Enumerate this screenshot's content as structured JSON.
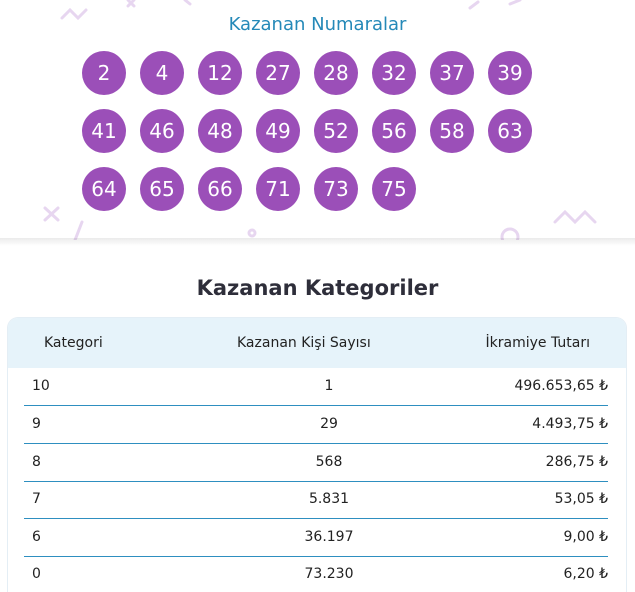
{
  "numbers": {
    "title": "Kazanan Numaralar",
    "balls": [
      "2",
      "4",
      "12",
      "27",
      "28",
      "32",
      "37",
      "39",
      "41",
      "46",
      "48",
      "49",
      "52",
      "56",
      "58",
      "63",
      "64",
      "65",
      "66",
      "71",
      "73",
      "75"
    ],
    "ball_color": "#9b4fb8",
    "title_color": "#2589b8"
  },
  "categories": {
    "title": "Kazanan Kategoriler",
    "headers": {
      "category": "Kategori",
      "winners": "Kazanan Kişi Sayısı",
      "prize": "İkramiye Tutarı"
    },
    "rows": [
      {
        "category": "10",
        "winners": "1",
        "prize": "496.653,65 ₺"
      },
      {
        "category": "9",
        "winners": "29",
        "prize": "4.493,75 ₺"
      },
      {
        "category": "8",
        "winners": "568",
        "prize": "286,75 ₺"
      },
      {
        "category": "7",
        "winners": "5.831",
        "prize": "53,05 ₺"
      },
      {
        "category": "6",
        "winners": "36.197",
        "prize": "9,00 ₺"
      },
      {
        "category": "0",
        "winners": "73.230",
        "prize": "6,20 ₺"
      }
    ],
    "header_bg": "#e6f3fa",
    "divider_color": "#2e8fc0"
  }
}
